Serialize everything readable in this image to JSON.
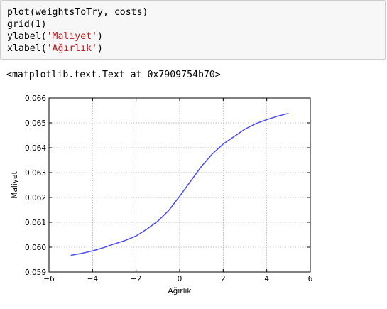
{
  "code_cell": {
    "lines": [
      {
        "pre": "plot(weightsToTry, costs)",
        "str": "",
        "post": ""
      },
      {
        "pre": "grid(1)",
        "str": "",
        "post": ""
      },
      {
        "pre": "ylabel(",
        "str": "'Maliyet'",
        "post": ")"
      },
      {
        "pre": "xlabel(",
        "str": "'Ağırlık'",
        "post": ")"
      }
    ]
  },
  "output_text": "<matplotlib.text.Text at 0x7909754b70>",
  "colors": {
    "line": "#4b4bf2",
    "grid": "#b0b0b0",
    "string": "#ba2121"
  },
  "chart_data": {
    "type": "line",
    "xlabel": "Ağırlık",
    "ylabel": "Maliyet",
    "xlim": [
      -6,
      6
    ],
    "ylim": [
      0.059,
      0.066
    ],
    "grid": true,
    "xticks": [
      -6,
      -4,
      -2,
      0,
      2,
      4,
      6
    ],
    "xtick_labels": [
      "−6",
      "−4",
      "−2",
      "0",
      "2",
      "4",
      "6"
    ],
    "yticks": [
      0.059,
      0.06,
      0.061,
      0.062,
      0.063,
      0.064,
      0.065,
      0.066
    ],
    "ytick_labels": [
      "0.059",
      "0.060",
      "0.061",
      "0.062",
      "0.063",
      "0.064",
      "0.065",
      "0.066"
    ],
    "series": [
      {
        "x": [
          -5,
          -4.5,
          -4,
          -3.5,
          -3,
          -2.5,
          -2,
          -1.5,
          -1,
          -0.5,
          0,
          0.5,
          1,
          1.5,
          2,
          2.5,
          3,
          3.5,
          4,
          4.5,
          5
        ],
        "y": [
          0.05967,
          0.05975,
          0.05985,
          0.05998,
          0.06013,
          0.06027,
          0.06045,
          0.06073,
          0.06105,
          0.06148,
          0.06205,
          0.06265,
          0.06325,
          0.06375,
          0.06415,
          0.06445,
          0.06475,
          0.06497,
          0.06513,
          0.06527,
          0.06538
        ]
      }
    ]
  }
}
